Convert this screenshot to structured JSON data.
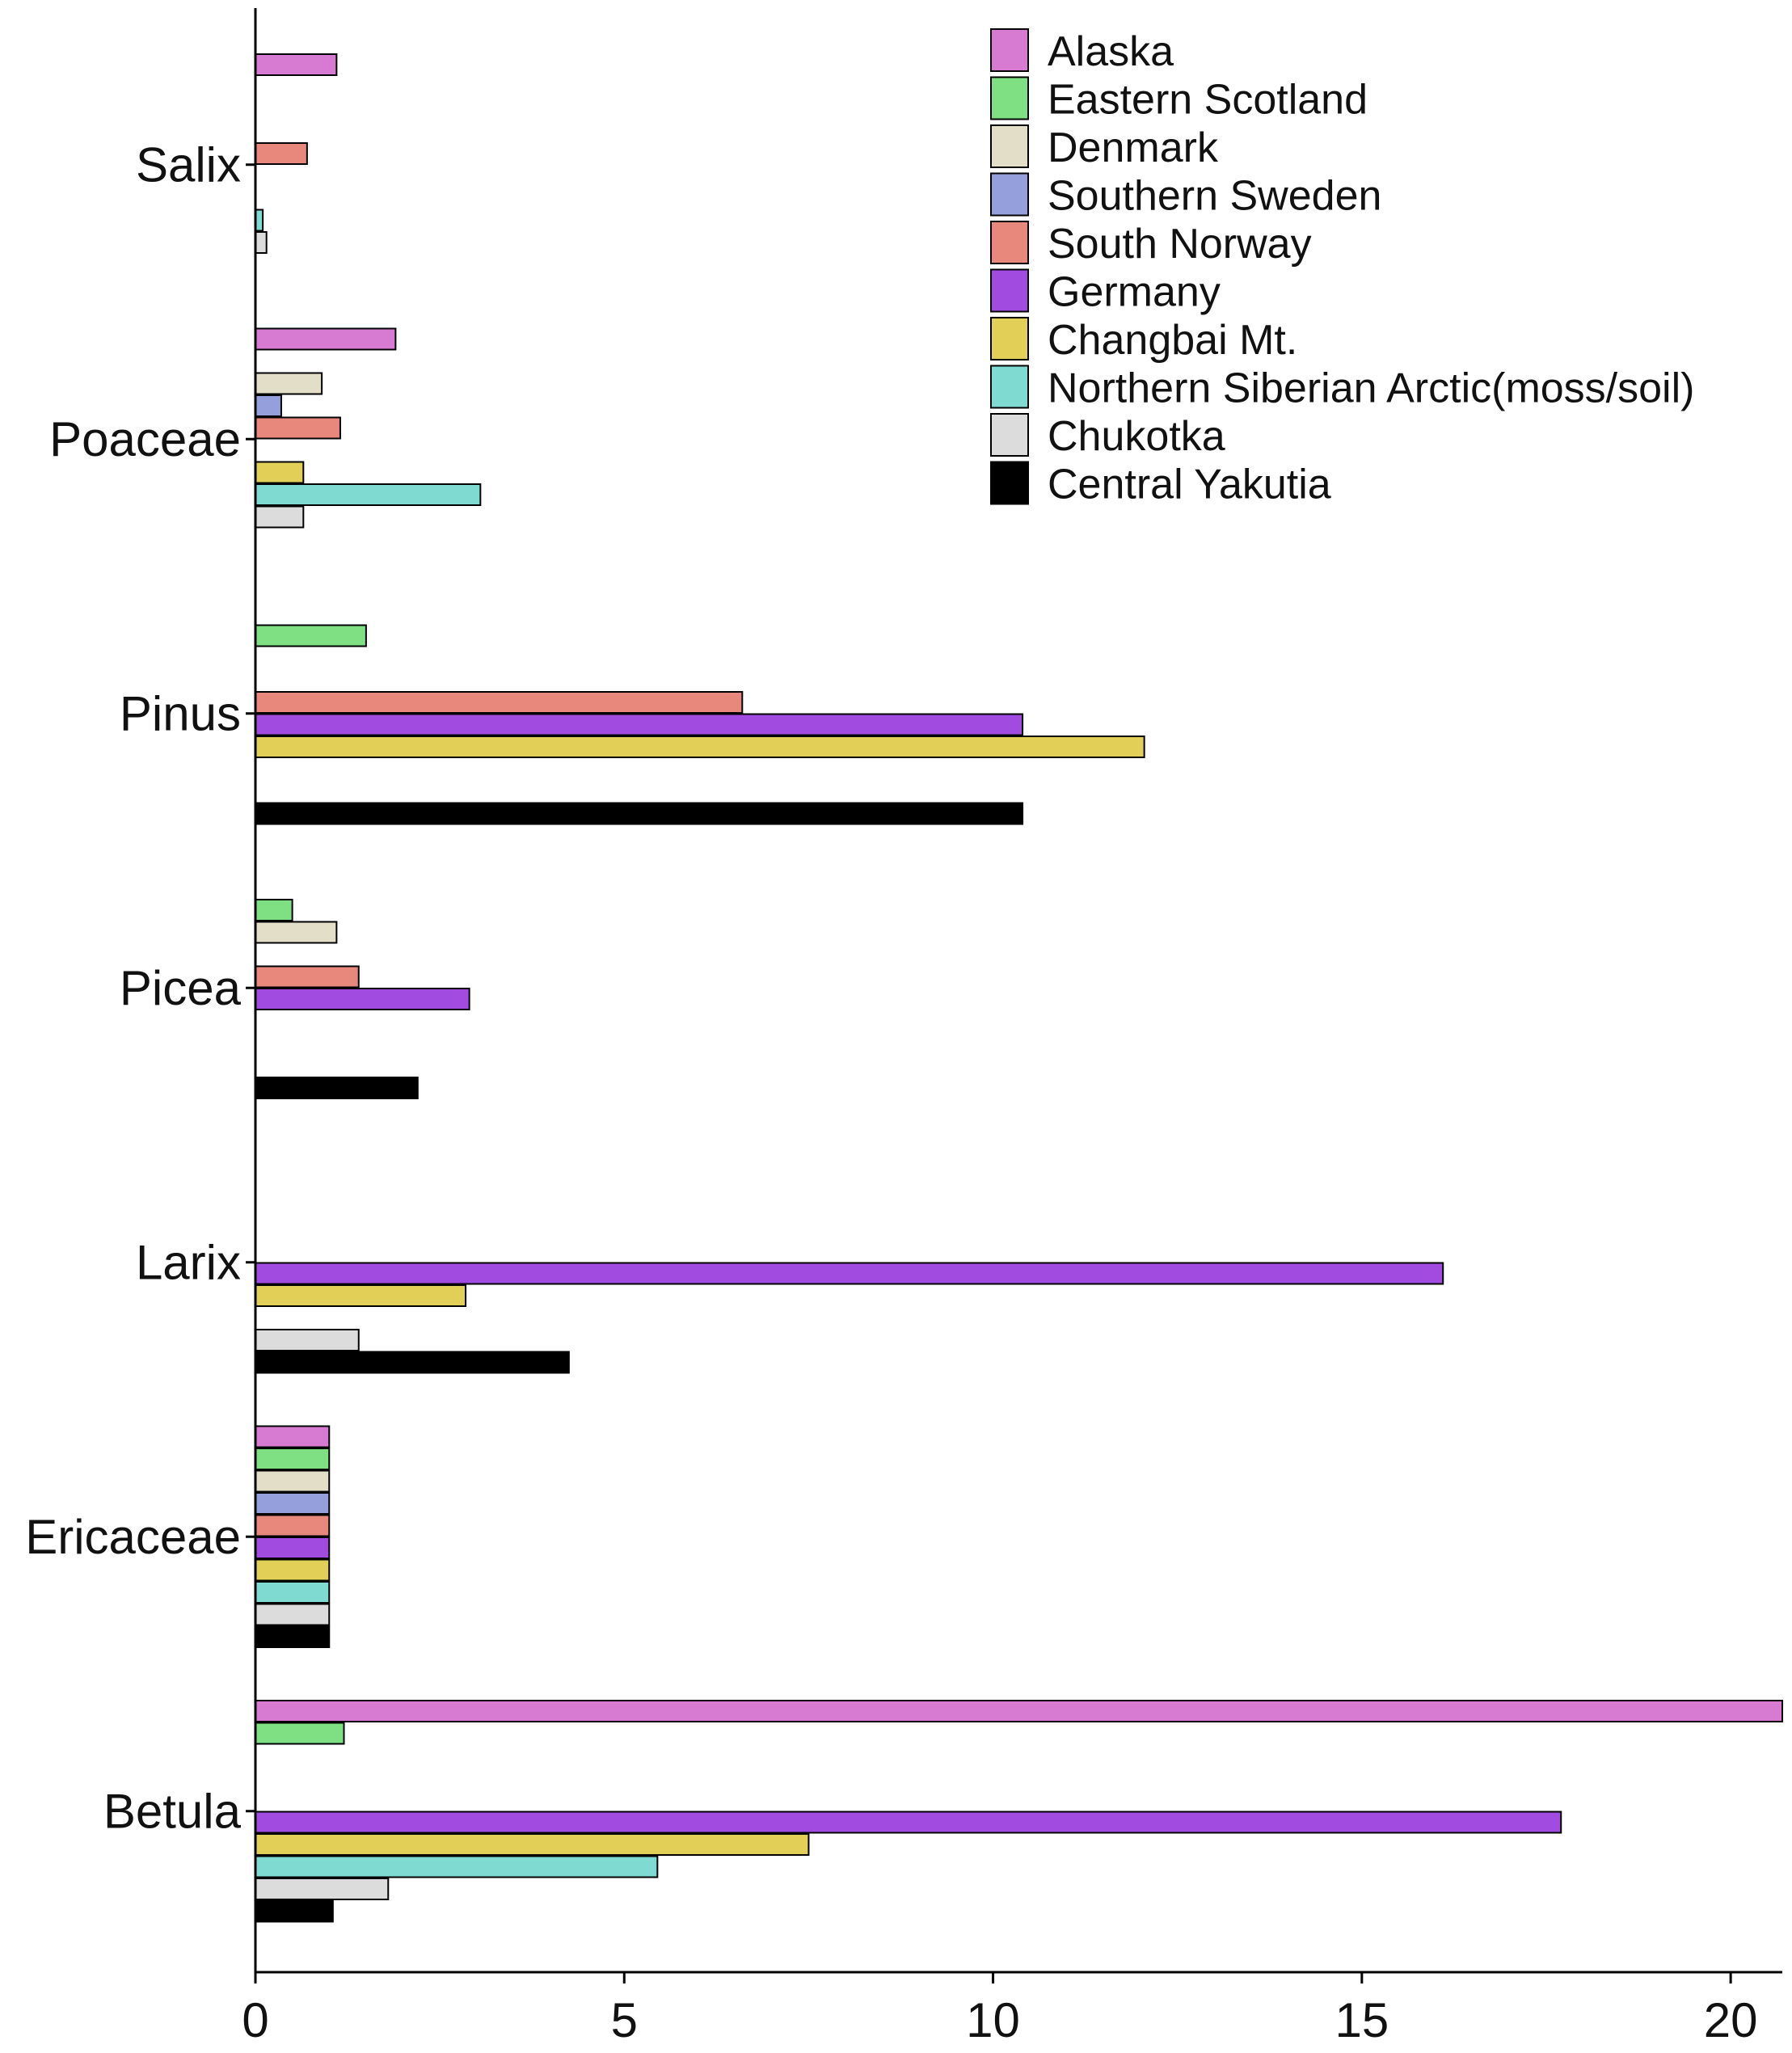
{
  "chart_data": {
    "type": "bar",
    "orientation": "horizontal",
    "title": "",
    "xlabel": "",
    "ylabel": "",
    "xlim": [
      0,
      20.7
    ],
    "xticks": [
      0,
      5,
      10,
      15,
      20
    ],
    "grid": false,
    "legend_position": "top-right",
    "categories": [
      "Salix",
      "Poaceae",
      "Pinus",
      "Picea",
      "Larix",
      "Ericaceae",
      "Betula"
    ],
    "series": [
      {
        "name": "Alaska",
        "color": "#D77BD2",
        "values": [
          1.1,
          1.9,
          null,
          null,
          null,
          1.0,
          20.7
        ]
      },
      {
        "name": "Eastern Scotland",
        "color": "#7EE082",
        "values": [
          null,
          null,
          1.5,
          0.5,
          null,
          1.0,
          1.2
        ]
      },
      {
        "name": "Denmark",
        "color": "#E3DEC8",
        "values": [
          null,
          0.9,
          null,
          1.1,
          null,
          1.0,
          null
        ]
      },
      {
        "name": "Southern Sweden",
        "color": "#949FDB",
        "values": [
          null,
          0.35,
          null,
          null,
          null,
          1.0,
          null
        ]
      },
      {
        "name": "South Norway",
        "color": "#E8877B",
        "values": [
          0.7,
          1.15,
          6.6,
          1.4,
          null,
          1.0,
          null
        ]
      },
      {
        "name": "Germany",
        "color": "#A24BE0",
        "values": [
          null,
          null,
          10.4,
          2.9,
          16.1,
          1.0,
          17.7
        ]
      },
      {
        "name": "Changbai Mt.",
        "color": "#E2CF58",
        "values": [
          null,
          0.65,
          12.05,
          null,
          2.85,
          1.0,
          7.5
        ]
      },
      {
        "name": "Northern Siberian Arctic(moss/soil)",
        "color": "#7FDAD1",
        "values": [
          0.1,
          3.05,
          null,
          null,
          null,
          1.0,
          5.45
        ]
      },
      {
        "name": "Chukotka",
        "color": "#DCDCDC",
        "values": [
          0.15,
          0.65,
          null,
          null,
          1.4,
          1.0,
          1.8
        ]
      },
      {
        "name": "Central Yakutia",
        "color": "#000000",
        "values": [
          null,
          null,
          10.4,
          2.2,
          4.25,
          1.0,
          1.05
        ]
      }
    ]
  }
}
